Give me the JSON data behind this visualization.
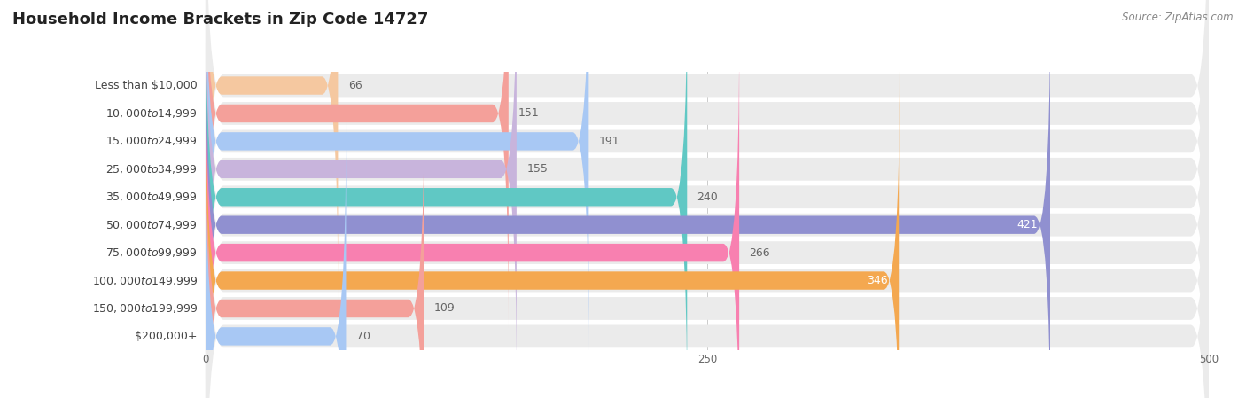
{
  "title": "Household Income Brackets in Zip Code 14727",
  "source": "Source: ZipAtlas.com",
  "categories": [
    "Less than $10,000",
    "$10,000 to $14,999",
    "$15,000 to $24,999",
    "$25,000 to $34,999",
    "$35,000 to $49,999",
    "$50,000 to $74,999",
    "$75,000 to $99,999",
    "$100,000 to $149,999",
    "$150,000 to $199,999",
    "$200,000+"
  ],
  "values": [
    66,
    151,
    191,
    155,
    240,
    421,
    266,
    346,
    109,
    70
  ],
  "bar_colors": [
    "#f5c8a0",
    "#f4a09a",
    "#a8c8f4",
    "#c8b4dc",
    "#60c8c4",
    "#9090d0",
    "#f880b0",
    "#f4a850",
    "#f4a09a",
    "#a8c8f4"
  ],
  "xlim": [
    0,
    500
  ],
  "xticks": [
    0,
    250,
    500
  ],
  "background_color": "#ffffff",
  "bar_bg_color": "#ebebeb",
  "title_fontsize": 13,
  "label_fontsize": 9,
  "value_fontsize": 9,
  "source_fontsize": 8.5
}
